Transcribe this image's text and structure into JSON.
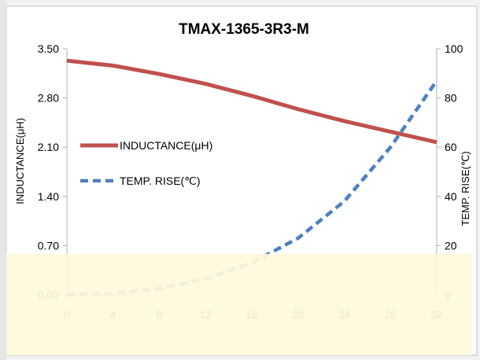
{
  "chart_data": {
    "type": "line",
    "title": "TMAX-1365-3R3-M",
    "xlabel": "",
    "ylabel": "INDUCTANCE(μH)",
    "y2label": "TEMP. RISE(℃)",
    "ylim": [
      0,
      3.5
    ],
    "y_ticks": [
      "3.50",
      "2.80",
      "2.10",
      "1.40",
      "0.70",
      "0.00"
    ],
    "y2lim": [
      0,
      100
    ],
    "y2_ticks": [
      "100",
      "80",
      "60",
      "40",
      "20",
      "0"
    ],
    "xlim": [
      0,
      32
    ],
    "x_ticks": [
      "0",
      "4",
      "8",
      "12",
      "16",
      "20",
      "24",
      "28",
      "32"
    ],
    "grid": false,
    "legend_position": "left",
    "series": [
      {
        "name": "INDUCTANCE(μH)",
        "axis": "left",
        "style": "solid",
        "color": "#c0504d",
        "x": [
          0,
          4,
          8,
          12,
          16,
          20,
          24,
          28,
          32
        ],
        "y": [
          3.33,
          3.26,
          3.14,
          3.0,
          2.83,
          2.64,
          2.47,
          2.32,
          2.17
        ]
      },
      {
        "name": "TEMP. RISE(℃)",
        "axis": "right",
        "style": "dashed",
        "color": "#4f81bd",
        "x": [
          0,
          4,
          8,
          12,
          16,
          20,
          24,
          28,
          32
        ],
        "y": [
          0,
          0.5,
          2.5,
          6.5,
          13,
          23,
          38,
          60,
          87
        ]
      }
    ]
  }
}
